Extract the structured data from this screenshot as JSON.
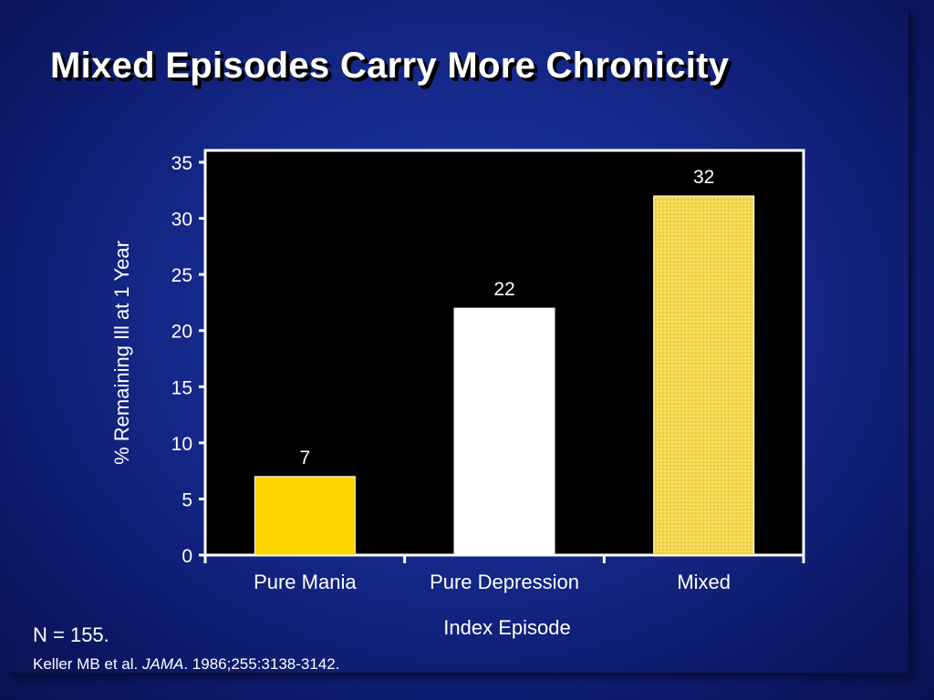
{
  "slide": {
    "title": "Mixed Episodes Carry More Chronicity",
    "footnote": "N = 155.",
    "citation": {
      "authors": "Keller MB et al.",
      "journal": "JAMA",
      "details": ". 1986;255:3138-3142."
    }
  },
  "chart_data": {
    "type": "bar",
    "title": "Mixed Episodes Carry More Chronicity",
    "categories": [
      "Pure Mania",
      "Pure Depression",
      "Mixed"
    ],
    "values": [
      7,
      22,
      32
    ],
    "data_labels": [
      "7",
      "22",
      "32"
    ],
    "xlabel": "Index Episode",
    "ylabel": "% Remaining Ill at 1 Year",
    "ylim": [
      0,
      35
    ],
    "yticks": [
      0,
      5,
      10,
      15,
      20,
      25,
      30,
      35
    ],
    "grid": false,
    "plot_background": "#000000",
    "bar_colors": [
      "#ffd700",
      "#ffffff",
      "#f5dc50"
    ],
    "bar_patterns": [
      "solid",
      "solid",
      "dotted"
    ]
  }
}
